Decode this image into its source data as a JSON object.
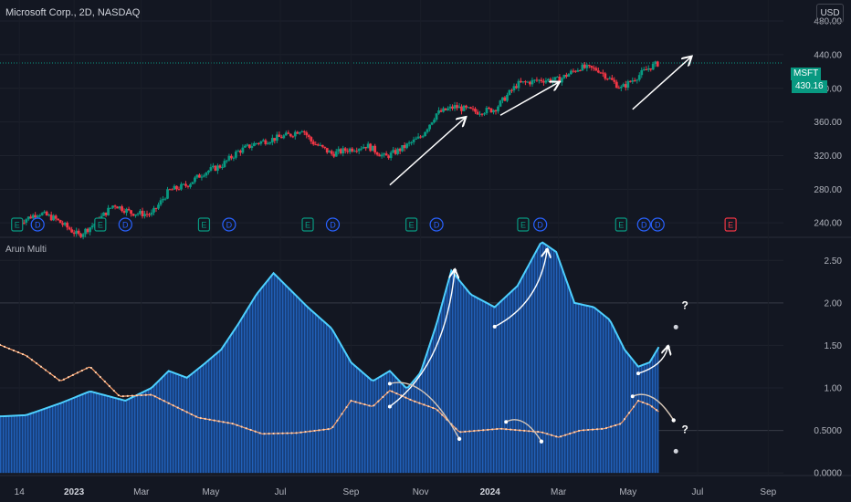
{
  "header": {
    "symbol_title": "Microsoft Corp., 2D, NASDAQ",
    "currency": "USD"
  },
  "price_tag": {
    "symbol": "MSFT",
    "value": "430.16"
  },
  "indicator": {
    "title": "Arun Multi"
  },
  "colors": {
    "background": "#131722",
    "up": "#089981",
    "down": "#f23645",
    "indicator_area": "#1e5bb0",
    "indicator_line": "#4dd0ff",
    "orange_line": "#ff9f68",
    "earnings_badge": "#089981",
    "dividend_badge": "#2962ff"
  },
  "chart_data": [
    {
      "type": "candlestick",
      "title": "Microsoft Corp., 2D, NASDAQ",
      "ylim": [
        225,
        505
      ],
      "y_ticks": [
        "480.00",
        "440.00",
        "400.00",
        "360.00",
        "320.00",
        "280.00",
        "240.00"
      ],
      "last_price": 430.16,
      "x_ticks": [
        "14",
        "2023",
        "Mar",
        "May",
        "Jul",
        "Sep",
        "Nov",
        "2024",
        "Mar",
        "May",
        "Jul",
        "Sep"
      ],
      "close_path": [
        [
          "2022-11-14",
          241
        ],
        [
          "2022-12-01",
          252
        ],
        [
          "2022-12-15",
          245
        ],
        [
          "2023-01-05",
          225
        ],
        [
          "2023-01-20",
          240
        ],
        [
          "2023-02-05",
          262
        ],
        [
          "2023-02-20",
          252
        ],
        [
          "2023-03-10",
          250
        ],
        [
          "2023-03-25",
          278
        ],
        [
          "2023-04-10",
          285
        ],
        [
          "2023-04-25",
          300
        ],
        [
          "2023-05-10",
          308
        ],
        [
          "2023-05-25",
          325
        ],
        [
          "2023-06-10",
          335
        ],
        [
          "2023-06-25",
          340
        ],
        [
          "2023-07-10",
          345
        ],
        [
          "2023-07-20",
          352
        ],
        [
          "2023-07-28",
          337
        ],
        [
          "2023-08-15",
          322
        ],
        [
          "2023-09-01",
          328
        ],
        [
          "2023-09-15",
          332
        ],
        [
          "2023-10-01",
          318
        ],
        [
          "2023-10-15",
          328
        ],
        [
          "2023-11-01",
          342
        ],
        [
          "2023-11-15",
          370
        ],
        [
          "2023-12-01",
          378
        ],
        [
          "2023-12-20",
          372
        ],
        [
          "2024-01-05",
          375
        ],
        [
          "2024-01-25",
          405
        ],
        [
          "2024-02-15",
          410
        ],
        [
          "2024-03-01",
          410
        ],
        [
          "2024-03-20",
          425
        ],
        [
          "2024-04-05",
          422
        ],
        [
          "2024-04-25",
          400
        ],
        [
          "2024-05-05",
          410
        ],
        [
          "2024-05-20",
          425
        ],
        [
          "2024-05-28",
          430
        ]
      ],
      "event_badges": [
        {
          "date": "2022-11-12",
          "label": "E"
        },
        {
          "date": "2022-11-30",
          "label": "D"
        },
        {
          "date": "2023-01-24",
          "label": "E"
        },
        {
          "date": "2023-02-15",
          "label": "D"
        },
        {
          "date": "2023-04-25",
          "label": "E"
        },
        {
          "date": "2023-05-17",
          "label": "D"
        },
        {
          "date": "2023-07-25",
          "label": "E"
        },
        {
          "date": "2023-08-16",
          "label": "D"
        },
        {
          "date": "2023-10-24",
          "label": "E"
        },
        {
          "date": "2023-11-15",
          "label": "D"
        },
        {
          "date": "2024-01-30",
          "label": "E"
        },
        {
          "date": "2024-02-14",
          "label": "D"
        },
        {
          "date": "2024-04-25",
          "label": "E"
        },
        {
          "date": "2024-05-15",
          "label": "D"
        },
        {
          "date": "2024-05-27",
          "label": "D"
        },
        {
          "date": "2024-07-30",
          "label": "E"
        }
      ],
      "annotations": [
        {
          "type": "arrow",
          "from": [
            "2023-10-05",
            285
          ],
          "to": [
            "2023-12-10",
            365
          ]
        },
        {
          "type": "arrow",
          "from": [
            "2024-01-10",
            368
          ],
          "to": [
            "2024-03-01",
            407
          ]
        },
        {
          "type": "arrow",
          "from": [
            "2024-05-05",
            375
          ],
          "to": [
            "2024-06-25",
            437
          ]
        }
      ]
    },
    {
      "type": "area",
      "title": "Arun Multi",
      "ylim": [
        -0.02,
        2.75
      ],
      "y_ticks": [
        "2.50",
        "2.00",
        "1.50",
        "1.00",
        "0.5000",
        "0.0000"
      ],
      "series": [
        {
          "values": [
            [
              "2022-10-20",
              0.66
            ],
            [
              "2022-11-20",
              0.68
            ],
            [
              "2022-12-20",
              0.82
            ],
            [
              "2023-01-15",
              0.96
            ],
            [
              "2023-02-15",
              0.85
            ],
            [
              "2023-03-10",
              1.0
            ],
            [
              "2023-03-25",
              1.2
            ],
            [
              "2023-04-10",
              1.12
            ],
            [
              "2023-04-25",
              1.28
            ],
            [
              "2023-05-10",
              1.45
            ],
            [
              "2023-05-25",
              1.75
            ],
            [
              "2023-06-10",
              2.1
            ],
            [
              "2023-06-25",
              2.35
            ],
            [
              "2023-07-10",
              2.15
            ],
            [
              "2023-07-25",
              1.95
            ],
            [
              "2023-08-15",
              1.7
            ],
            [
              "2023-09-01",
              1.3
            ],
            [
              "2023-09-20",
              1.08
            ],
            [
              "2023-10-05",
              1.2
            ],
            [
              "2023-10-20",
              0.99
            ],
            [
              "2023-11-01",
              1.18
            ],
            [
              "2023-11-15",
              1.75
            ],
            [
              "2023-11-28",
              2.38
            ],
            [
              "2023-12-15",
              2.1
            ],
            [
              "2024-01-05",
              1.95
            ],
            [
              "2024-01-25",
              2.2
            ],
            [
              "2024-02-15",
              2.72
            ],
            [
              "2024-02-28",
              2.6
            ],
            [
              "2024-03-15",
              2.0
            ],
            [
              "2024-04-01",
              1.95
            ],
            [
              "2024-04-15",
              1.8
            ],
            [
              "2024-04-28",
              1.45
            ],
            [
              "2024-05-10",
              1.25
            ],
            [
              "2024-05-20",
              1.3
            ],
            [
              "2024-05-28",
              1.48
            ]
          ]
        },
        {
          "values": [
            [
              "2022-10-20",
              1.55
            ],
            [
              "2022-11-20",
              1.38
            ],
            [
              "2022-12-20",
              1.08
            ],
            [
              "2023-01-15",
              1.25
            ],
            [
              "2023-02-10",
              0.9
            ],
            [
              "2023-03-10",
              0.92
            ],
            [
              "2023-03-25",
              0.82
            ],
            [
              "2023-04-20",
              0.65
            ],
            [
              "2023-05-20",
              0.58
            ],
            [
              "2023-06-15",
              0.46
            ],
            [
              "2023-07-15",
              0.47
            ],
            [
              "2023-08-15",
              0.52
            ],
            [
              "2023-09-01",
              0.85
            ],
            [
              "2023-09-20",
              0.78
            ],
            [
              "2023-10-05",
              0.97
            ],
            [
              "2023-10-25",
              0.85
            ],
            [
              "2023-11-15",
              0.75
            ],
            [
              "2023-12-05",
              0.48
            ],
            [
              "2024-01-10",
              0.52
            ],
            [
              "2024-02-15",
              0.48
            ],
            [
              "2024-03-01",
              0.42
            ],
            [
              "2024-03-20",
              0.5
            ],
            [
              "2024-04-10",
              0.52
            ],
            [
              "2024-04-25",
              0.58
            ],
            [
              "2024-05-10",
              0.85
            ],
            [
              "2024-05-20",
              0.8
            ],
            [
              "2024-05-28",
              0.72
            ]
          ]
        }
      ],
      "annotations": [
        {
          "type": "curve-arrow",
          "from": [
            "2023-10-05",
            0.78
          ],
          "to": [
            "2023-12-01",
            2.38
          ],
          "end_label": "",
          "start_label": ""
        },
        {
          "type": "curve-arrow",
          "from": [
            "2024-01-05",
            1.72
          ],
          "to": [
            "2024-02-20",
            2.62
          ]
        },
        {
          "type": "curve-arrow",
          "from": [
            "2024-05-10",
            1.17
          ],
          "to": [
            "2024-06-05",
            1.48
          ]
        },
        {
          "type": "curve-arrow",
          "from": [
            "2023-10-05",
            1.05
          ],
          "to": [
            "2023-12-05",
            0.4
          ]
        },
        {
          "type": "curve-arrow",
          "from": [
            "2024-01-15",
            0.6
          ],
          "to": [
            "2024-02-15",
            0.37
          ]
        },
        {
          "type": "curve-arrow",
          "from": [
            "2024-05-05",
            0.9
          ],
          "to": [
            "2024-06-10",
            0.62
          ]
        },
        {
          "type": "question",
          "at": [
            "2024-06-20",
            1.93
          ],
          "label": "?"
        },
        {
          "type": "question",
          "at": [
            "2024-06-20",
            0.47
          ],
          "label": "?"
        }
      ]
    }
  ]
}
